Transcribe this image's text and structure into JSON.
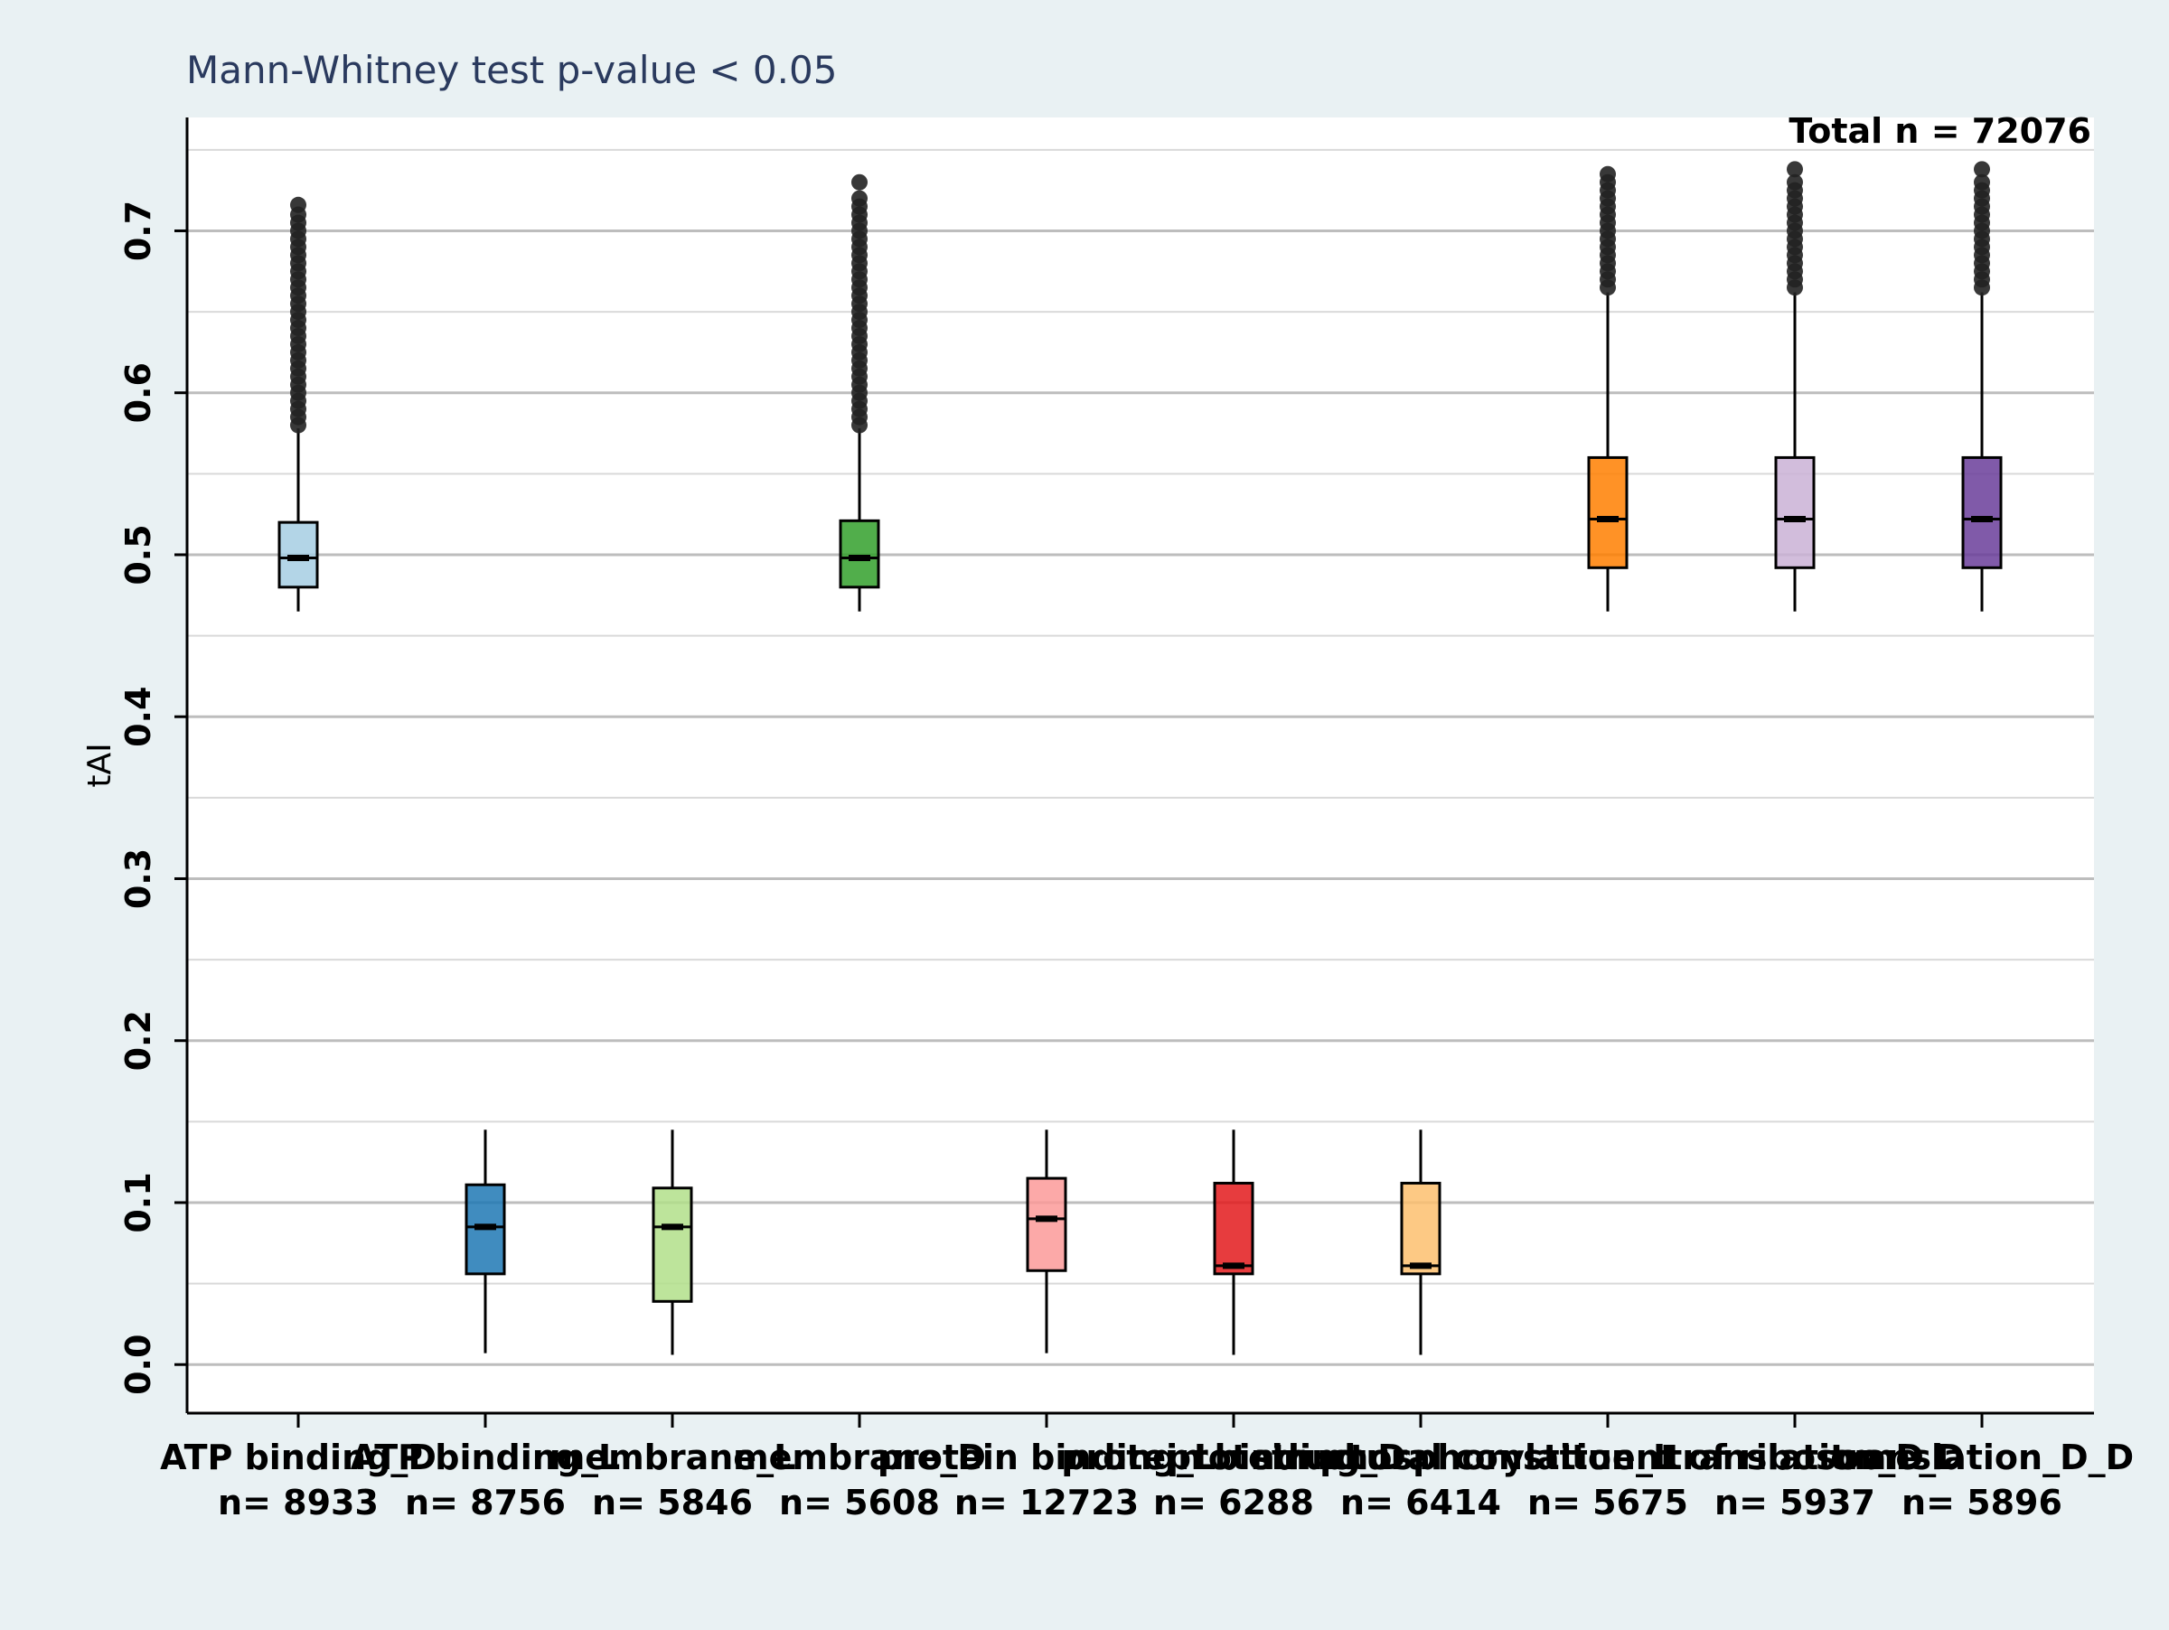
{
  "chart_data": {
    "type": "box",
    "subtitle": "Mann-Whitney test  p-value < 0.05",
    "annotation": "Total n = 72076",
    "ylabel": "tAI",
    "xlabel": "",
    "ylim": [
      -0.03,
      0.77
    ],
    "yticks": [
      "0.0",
      "0.1",
      "0.2",
      "0.3",
      "0.4",
      "0.5",
      "0.6",
      "0.7"
    ],
    "grid": "y",
    "legend": "none",
    "categories": [
      "ATP binding_D",
      "ATP binding_L",
      "membrane_L",
      "membrane_D",
      "protein binding_L",
      "protein binding_D",
      "protein phosphorylation_L",
      "structural constituent of ribosome_D",
      "translation_D",
      "translation_D_D"
    ],
    "counts": [
      "n= 8933",
      "n= 8756",
      "n= 5846",
      "n= 5608",
      "n= 12723",
      "n= 6288",
      "n= 6414",
      "n= 5675",
      "n= 5937",
      "n= 5896"
    ],
    "boxes": [
      {
        "whislo": 0.465,
        "q1": 0.48,
        "med": 0.498,
        "q3": 0.52,
        "whishi": 0.578,
        "fliers": [
          0.58,
          0.585,
          0.59,
          0.595,
          0.6,
          0.605,
          0.61,
          0.615,
          0.62,
          0.625,
          0.63,
          0.635,
          0.64,
          0.645,
          0.65,
          0.655,
          0.66,
          0.665,
          0.67,
          0.675,
          0.68,
          0.685,
          0.69,
          0.695,
          0.7,
          0.705,
          0.71,
          0.716
        ],
        "color": "#a6cee3"
      },
      {
        "whislo": 0.007,
        "q1": 0.056,
        "med": 0.085,
        "q3": 0.111,
        "whishi": 0.145,
        "fliers": [],
        "color": "#1f78b4"
      },
      {
        "whislo": 0.006,
        "q1": 0.039,
        "med": 0.085,
        "q3": 0.109,
        "whishi": 0.145,
        "fliers": [],
        "color": "#b2df8a"
      },
      {
        "whislo": 0.465,
        "q1": 0.48,
        "med": 0.498,
        "q3": 0.521,
        "whishi": 0.578,
        "fliers": [
          0.58,
          0.585,
          0.59,
          0.595,
          0.6,
          0.605,
          0.61,
          0.615,
          0.62,
          0.625,
          0.63,
          0.635,
          0.64,
          0.645,
          0.65,
          0.655,
          0.66,
          0.665,
          0.67,
          0.675,
          0.68,
          0.685,
          0.69,
          0.695,
          0.7,
          0.705,
          0.71,
          0.715,
          0.72,
          0.73
        ],
        "color": "#33a02c"
      },
      {
        "whislo": 0.007,
        "q1": 0.058,
        "med": 0.09,
        "q3": 0.115,
        "whishi": 0.145,
        "fliers": [],
        "color": "#fb9a99"
      },
      {
        "whislo": 0.006,
        "q1": 0.056,
        "med": 0.061,
        "q3": 0.112,
        "whishi": 0.145,
        "fliers": [],
        "color": "#e31a1c"
      },
      {
        "whislo": 0.006,
        "q1": 0.056,
        "med": 0.061,
        "q3": 0.112,
        "whishi": 0.145,
        "fliers": [],
        "color": "#fdbf6f"
      },
      {
        "whislo": 0.465,
        "q1": 0.492,
        "med": 0.522,
        "q3": 0.56,
        "whishi": 0.662,
        "fliers": [
          0.665,
          0.67,
          0.675,
          0.68,
          0.685,
          0.69,
          0.695,
          0.7,
          0.705,
          0.71,
          0.715,
          0.72,
          0.725,
          0.73,
          0.735
        ],
        "color": "#ff7f00"
      },
      {
        "whislo": 0.465,
        "q1": 0.492,
        "med": 0.522,
        "q3": 0.56,
        "whishi": 0.662,
        "fliers": [
          0.665,
          0.67,
          0.675,
          0.68,
          0.685,
          0.69,
          0.695,
          0.7,
          0.705,
          0.71,
          0.715,
          0.72,
          0.725,
          0.73,
          0.738
        ],
        "color": "#cab2d6"
      },
      {
        "whislo": 0.465,
        "q1": 0.492,
        "med": 0.522,
        "q3": 0.56,
        "whishi": 0.662,
        "fliers": [
          0.665,
          0.67,
          0.675,
          0.68,
          0.685,
          0.69,
          0.695,
          0.7,
          0.705,
          0.71,
          0.715,
          0.72,
          0.725,
          0.73,
          0.738
        ],
        "color": "#6a3d9a"
      }
    ]
  }
}
